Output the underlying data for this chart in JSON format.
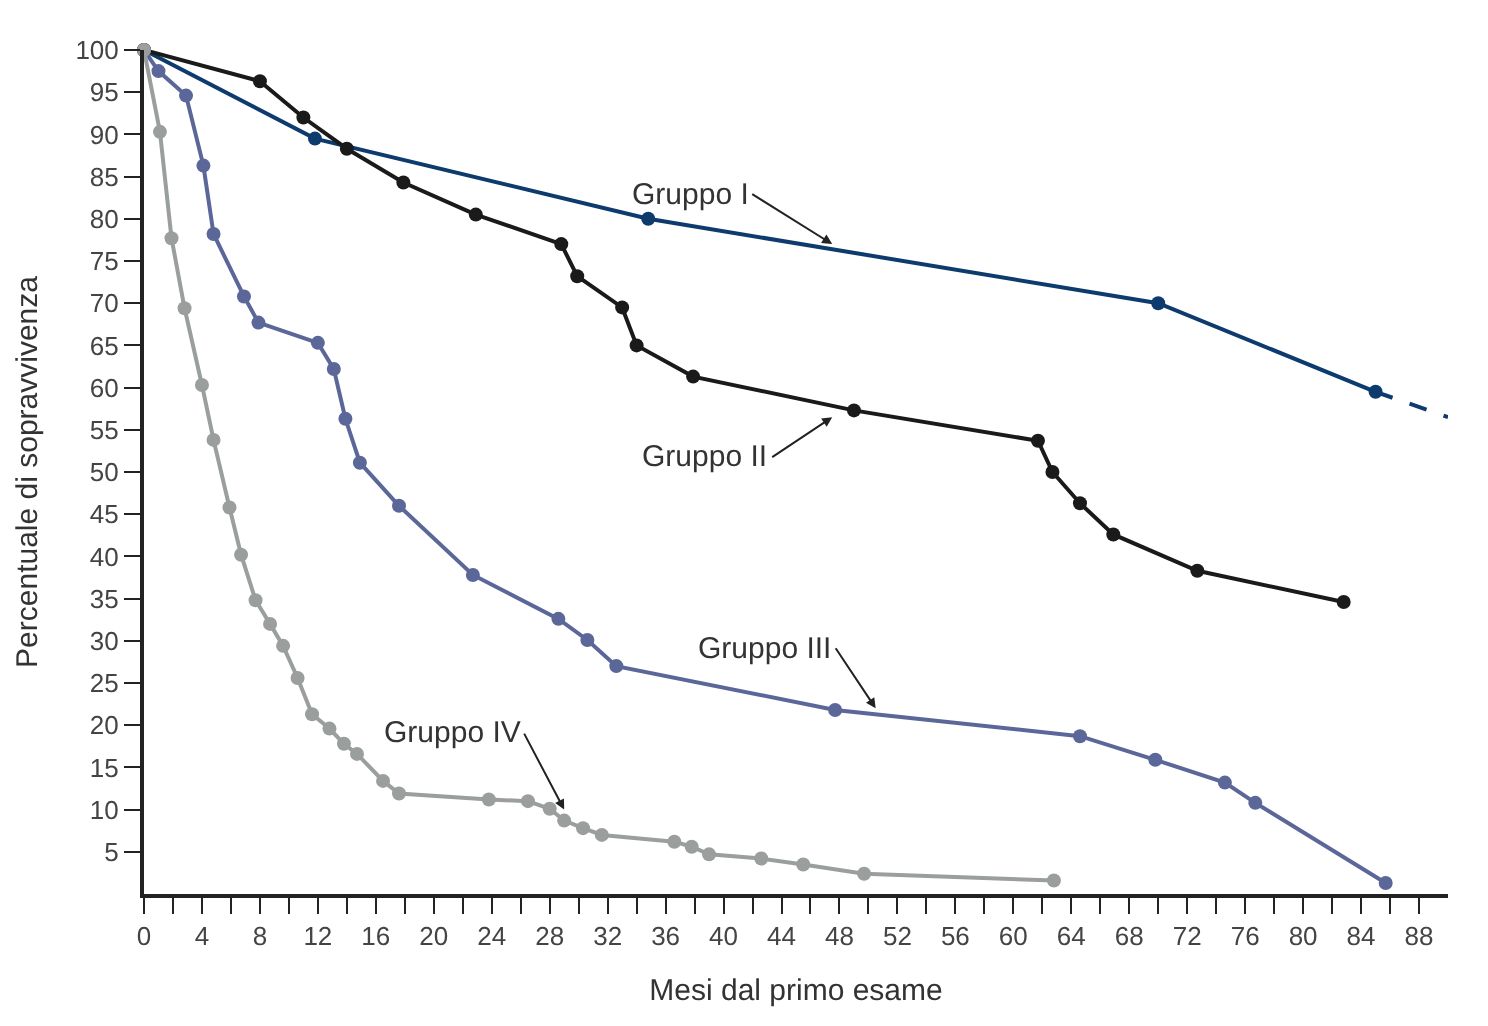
{
  "chart_data": {
    "type": "line",
    "xlabel": "Mesi dal primo esame",
    "ylabel": "Percentuale di sopravvivenza",
    "xlim": [
      0,
      90
    ],
    "ylim": [
      0,
      100
    ],
    "xticks": [
      0,
      {
        "value": 2,
        "label": null
      },
      4,
      {
        "value": 6,
        "label": null
      },
      8,
      {
        "value": 10,
        "label": null
      },
      12,
      {
        "value": 14,
        "label": null
      },
      16,
      {
        "value": 18,
        "label": null
      },
      20,
      {
        "value": 22,
        "label": null
      },
      24,
      {
        "value": 26,
        "label": null
      },
      28,
      {
        "value": 30,
        "label": null
      },
      32,
      {
        "value": 34,
        "label": null
      },
      36,
      {
        "value": 38,
        "label": null
      },
      40,
      {
        "value": 42,
        "label": null
      },
      44,
      {
        "value": 46,
        "label": null
      },
      48,
      {
        "value": 50,
        "label": null
      },
      52,
      {
        "value": 54,
        "label": null
      },
      56,
      {
        "value": 58,
        "label": null
      },
      60,
      {
        "value": 62,
        "label": null
      },
      64,
      {
        "value": 66,
        "label": null
      },
      68,
      {
        "value": 70,
        "label": null
      },
      72,
      {
        "value": 74,
        "label": null
      },
      76,
      {
        "value": 78,
        "label": null
      },
      80,
      {
        "value": 82,
        "label": null
      },
      84,
      {
        "value": 86,
        "label": null
      },
      88
    ],
    "yticks": [
      5,
      10,
      15,
      20,
      25,
      30,
      35,
      40,
      45,
      50,
      55,
      60,
      65,
      70,
      75,
      80,
      85,
      90,
      95,
      100
    ],
    "marker": "circle",
    "line_style": "solid",
    "series": [
      {
        "color": "#0d3b6e",
        "x": [
          0,
          11.8,
          34.8,
          70,
          85
        ],
        "values": [
          100,
          89.5,
          80,
          70,
          59.5
        ]
      },
      {
        "color": "#0d3b6e",
        "line_style": "dashed",
        "marker": "none",
        "x": [
          85,
          90
        ],
        "values": [
          59.5,
          56.5
        ]
      },
      {
        "color": "#1a1a1a",
        "x": [
          0,
          8,
          11,
          14,
          17.9,
          22.9,
          28.8,
          29.9,
          33,
          34,
          37.9,
          49,
          61.7,
          62.7,
          64.6,
          66.9,
          72.7,
          82.8
        ],
        "values": [
          100,
          96.3,
          92,
          88.3,
          84.3,
          80.5,
          77,
          73.2,
          69.5,
          65,
          61.3,
          57.3,
          53.7,
          50,
          46.3,
          42.6,
          38.3,
          34.6
        ]
      },
      {
        "color": "#5b6799",
        "x": [
          0,
          1,
          2.9,
          4.1,
          4.8,
          6.9,
          7.9,
          12,
          13.1,
          13.9,
          14.9,
          17.6,
          22.7,
          28.6,
          30.6,
          32.6,
          47.7,
          64.6,
          69.8,
          74.6,
          76.7,
          85.7
        ],
        "values": [
          100,
          97.5,
          94.6,
          86.3,
          78.2,
          70.8,
          67.7,
          65.3,
          62.2,
          56.3,
          51.1,
          46,
          37.8,
          32.6,
          30.1,
          27,
          21.8,
          18.7,
          15.9,
          13.2,
          10.8,
          1.3
        ]
      },
      {
        "color": "#9a9e9c",
        "x": [
          0,
          1.1,
          1.9,
          2.8,
          4,
          4.8,
          5.9,
          6.7,
          7.7,
          8.7,
          9.6,
          10.6,
          11.6,
          12.8,
          13.8,
          14.7,
          16.5,
          17.6,
          23.8,
          26.5,
          28,
          29,
          30.3,
          31.6,
          36.6,
          37.8,
          39,
          42.6,
          45.5,
          49.7,
          62.8
        ],
        "values": [
          100,
          90.3,
          77.7,
          69.4,
          60.3,
          53.8,
          45.8,
          40.2,
          34.8,
          32,
          29.4,
          25.6,
          21.3,
          19.6,
          17.8,
          16.6,
          13.4,
          11.9,
          11.2,
          11,
          10.1,
          8.7,
          7.8,
          7,
          6.2,
          5.6,
          4.7,
          4.2,
          3.5,
          2.4,
          1.6
        ]
      }
    ],
    "annotations": [
      {
        "text": "Gruppo I",
        "x": 47.5,
        "y": 77
      },
      {
        "text": "Gruppo II",
        "x": 47.5,
        "y": 56.5
      },
      {
        "text": "Gruppo III",
        "x": 50.5,
        "y": 22
      },
      {
        "text": "Gruppo IV",
        "x": 29,
        "y": 10
      }
    ]
  }
}
